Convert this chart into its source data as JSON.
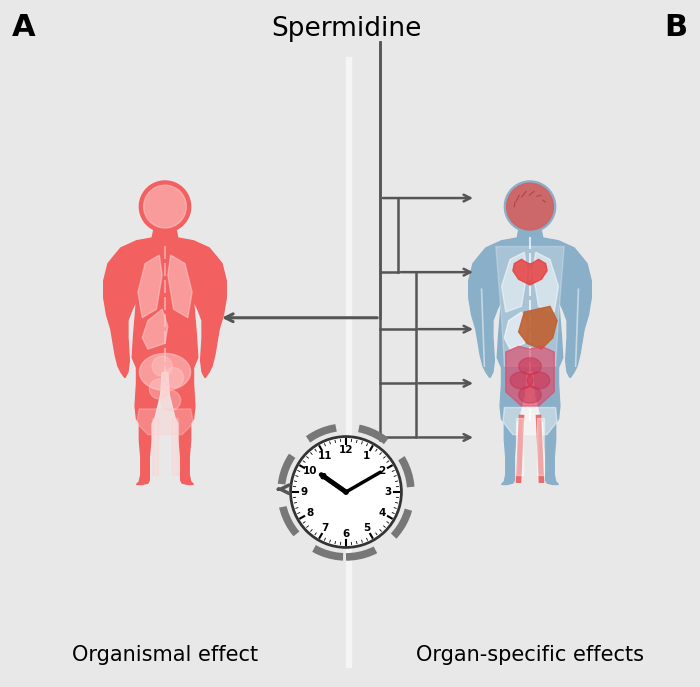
{
  "title": "Spermidine",
  "label_A": "A",
  "label_B": "B",
  "label_left": "Organismal effect",
  "label_right": "Organ-specific effects",
  "bg_color": "#e8e8e8",
  "body_left_color": "#f26060",
  "body_right_color": "#8aafc8",
  "divider_color": "#f5f5f5",
  "arrow_color": "#555555",
  "clock_bg": "#ffffff",
  "clock_border": "#222222",
  "organ_red": "#e84040",
  "organ_brown": "#b5673a",
  "organ_pink": "#f0a0a0"
}
